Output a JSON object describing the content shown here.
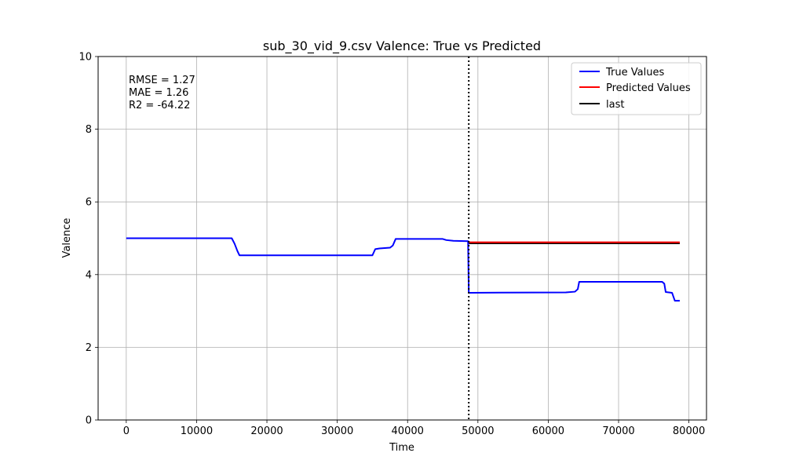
{
  "chart_data": {
    "type": "line",
    "title": "sub_30_vid_9.csv Valence: True vs Predicted",
    "xlabel": "Time",
    "ylabel": "Valence",
    "xlim": [
      -4000,
      82500
    ],
    "ylim": [
      0,
      10
    ],
    "xticks": [
      0,
      10000,
      20000,
      30000,
      40000,
      50000,
      60000,
      70000,
      80000
    ],
    "yticks": [
      0,
      2,
      4,
      6,
      8,
      10
    ],
    "grid": true,
    "legend_position": "top-right",
    "annotation_lines": [
      "RMSE = 1.27",
      "MAE = 1.26",
      "R2 = -64.22"
    ],
    "vline": {
      "x": 48700,
      "style": "dotted",
      "color": "#000000"
    },
    "series": [
      {
        "name": "True Values",
        "color": "#0000ff",
        "points": [
          [
            0,
            5.0
          ],
          [
            15000,
            5.0
          ],
          [
            15400,
            4.85
          ],
          [
            15800,
            4.65
          ],
          [
            16100,
            4.53
          ],
          [
            35000,
            4.53
          ],
          [
            35400,
            4.7
          ],
          [
            36000,
            4.72
          ],
          [
            37500,
            4.74
          ],
          [
            37900,
            4.8
          ],
          [
            38300,
            4.98
          ],
          [
            45000,
            4.98
          ],
          [
            45500,
            4.95
          ],
          [
            46500,
            4.93
          ],
          [
            48600,
            4.92
          ],
          [
            48700,
            3.5
          ],
          [
            62500,
            3.51
          ],
          [
            63800,
            3.53
          ],
          [
            64200,
            3.6
          ],
          [
            64400,
            3.8
          ],
          [
            76200,
            3.8
          ],
          [
            76500,
            3.75
          ],
          [
            76700,
            3.52
          ],
          [
            77600,
            3.5
          ],
          [
            78000,
            3.28
          ],
          [
            78700,
            3.28
          ]
        ]
      },
      {
        "name": "Predicted Values",
        "color": "#ff0000",
        "points": [
          [
            48700,
            4.89
          ],
          [
            78700,
            4.89
          ]
        ]
      },
      {
        "name": "last",
        "color": "#000000",
        "points": [
          [
            48700,
            4.86
          ],
          [
            78700,
            4.86
          ]
        ]
      }
    ]
  }
}
